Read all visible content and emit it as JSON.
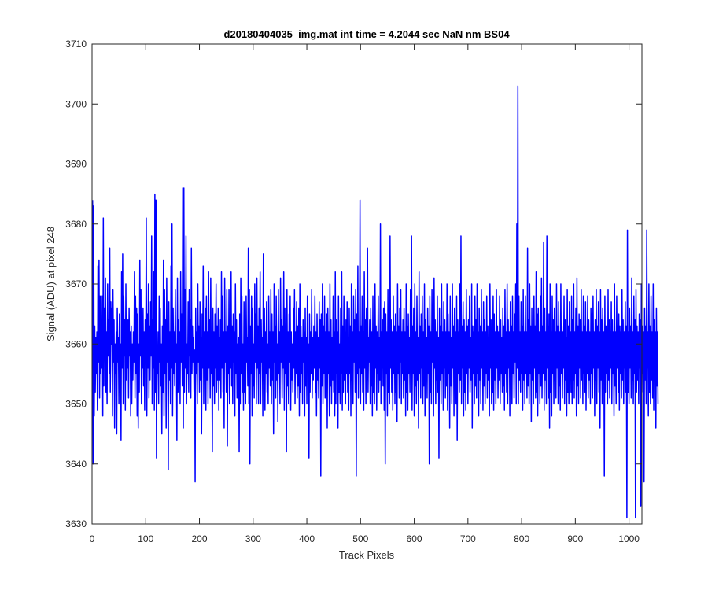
{
  "chart_data": {
    "type": "line",
    "title": "d20180404035_img.mat int time = 4.2044 sec  NaN nm BS04",
    "xlabel": "Track Pixels",
    "ylabel": "Signal (ADU) at pixel 248",
    "xlim": [
      0,
      1024
    ],
    "ylim": [
      3630,
      3710
    ],
    "xticks": [
      0,
      100,
      200,
      300,
      400,
      500,
      600,
      700,
      800,
      900,
      1000
    ],
    "yticks": [
      3630,
      3640,
      3650,
      3660,
      3670,
      3680,
      3690,
      3700,
      3710
    ],
    "grid": false,
    "legend": "none",
    "series": [
      {
        "color": "#0000ff",
        "x_start": 1,
        "x_step": 1,
        "values": [
          3684,
          3640,
          3683,
          3648,
          3663,
          3652,
          3661,
          3655,
          3662,
          3649,
          3673,
          3657,
          3674,
          3651,
          3668,
          3655,
          3660,
          3656,
          3668,
          3648,
          3681,
          3653,
          3666,
          3659,
          3671,
          3652,
          3662,
          3650,
          3670,
          3658,
          3664,
          3655,
          3676,
          3652,
          3667,
          3660,
          3666,
          3648,
          3669,
          3657,
          3664,
          3646,
          3660,
          3655,
          3662,
          3645,
          3666,
          3657,
          3661,
          3650,
          3665,
          3652,
          3660,
          3644,
          3672,
          3656,
          3675,
          3650,
          3668,
          3658,
          3664,
          3649,
          3670,
          3654,
          3662,
          3656,
          3664,
          3651,
          3666,
          3658,
          3662,
          3648,
          3663,
          3650,
          3660,
          3654,
          3662,
          3657,
          3672,
          3651,
          3668,
          3655,
          3666,
          3648,
          3665,
          3646,
          3660,
          3652,
          3674,
          3658,
          3669,
          3650,
          3663,
          3656,
          3666,
          3653,
          3662,
          3649,
          3664,
          3657,
          3681,
          3648,
          3665,
          3656,
          3670,
          3651,
          3663,
          3654,
          3667,
          3658,
          3678,
          3650,
          3664,
          3656,
          3672,
          3649,
          3685,
          3652,
          3684,
          3641,
          3658,
          3655,
          3662,
          3650,
          3668,
          3657,
          3666,
          3653,
          3660,
          3645,
          3663,
          3652,
          3674,
          3648,
          3669,
          3655,
          3664,
          3646,
          3671,
          3657,
          3663,
          3639,
          3667,
          3654,
          3662,
          3650,
          3673,
          3656,
          3680,
          3648,
          3666,
          3655,
          3662,
          3653,
          3669,
          3657,
          3660,
          3644,
          3671,
          3652,
          3664,
          3655,
          3662,
          3650,
          3672,
          3657,
          3665,
          3653,
          3686,
          3646,
          3686,
          3652,
          3669,
          3656,
          3678,
          3650,
          3660,
          3655,
          3667,
          3652,
          3669,
          3658,
          3664,
          3651,
          3676,
          3655,
          3663,
          3657,
          3661,
          3652,
          3659,
          3637,
          3666,
          3655,
          3662,
          3650,
          3670,
          3657,
          3663,
          3652,
          3667,
          3654,
          3661,
          3645,
          3665,
          3656,
          3673,
          3650,
          3662,
          3655,
          3666,
          3649,
          3668,
          3654,
          3662,
          3650,
          3672,
          3656,
          3664,
          3651,
          3671,
          3655,
          3660,
          3642,
          3666,
          3653,
          3662,
          3650,
          3665,
          3656,
          3670,
          3652,
          3663,
          3654,
          3666,
          3649,
          3661,
          3654,
          3664,
          3651,
          3672,
          3656,
          3668,
          3652,
          3662,
          3646,
          3671,
          3657,
          3662,
          3652,
          3669,
          3643,
          3663,
          3655,
          3669,
          3650,
          3662,
          3656,
          3672,
          3653,
          3663,
          3650,
          3665,
          3657,
          3662,
          3648,
          3670,
          3655,
          3664,
          3651,
          3660,
          3654,
          3661,
          3642,
          3665,
          3650,
          3671,
          3655,
          3668,
          3652,
          3660,
          3649,
          3667,
          3652,
          3662,
          3650,
          3668,
          3657,
          3661,
          3653,
          3676,
          3650,
          3669,
          3640,
          3663,
          3655,
          3668,
          3648,
          3666,
          3653,
          3660,
          3651,
          3670,
          3657,
          3665,
          3650,
          3671,
          3656,
          3663,
          3650,
          3666,
          3655,
          3672,
          3650,
          3664,
          3657,
          3661,
          3648,
          3675,
          3654,
          3666,
          3649,
          3662,
          3655,
          3667,
          3652,
          3660,
          3650,
          3668,
          3656,
          3662,
          3653,
          3669,
          3650,
          3665,
          3654,
          3662,
          3645,
          3670,
          3657,
          3663,
          3651,
          3668,
          3654,
          3660,
          3647,
          3669,
          3655,
          3662,
          3650,
          3671,
          3657,
          3664,
          3651,
          3663,
          3656,
          3672,
          3649,
          3666,
          3655,
          3661,
          3642,
          3669,
          3653,
          3662,
          3650,
          3665,
          3657,
          3668,
          3649,
          3662,
          3654,
          3660,
          3652,
          3666,
          3656,
          3669,
          3650,
          3662,
          3655,
          3667,
          3651,
          3663,
          3653,
          3666,
          3648,
          3670,
          3652,
          3663,
          3655,
          3661,
          3650,
          3664,
          3657,
          3662,
          3648,
          3666,
          3653,
          3661,
          3650,
          3668,
          3656,
          3660,
          3641,
          3665,
          3652,
          3662,
          3655,
          3669,
          3651,
          3661,
          3654,
          3663,
          3656,
          3668,
          3652,
          3662,
          3648,
          3665,
          3654,
          3661,
          3651,
          3667,
          3656,
          3664,
          3638,
          3665,
          3653,
          3670,
          3650,
          3663,
          3655,
          3668,
          3651,
          3662,
          3657,
          3665,
          3646,
          3666,
          3655,
          3662,
          3648,
          3670,
          3653,
          3664,
          3650,
          3661,
          3654,
          3668,
          3652,
          3662,
          3648,
          3672,
          3650,
          3664,
          3655,
          3662,
          3646,
          3668,
          3652,
          3660,
          3650,
          3666,
          3655,
          3672,
          3649,
          3663,
          3652,
          3668,
          3654,
          3662,
          3650,
          3664,
          3655,
          3667,
          3652,
          3661,
          3649,
          3666,
          3655,
          3663,
          3648,
          3670,
          3654,
          3662,
          3650,
          3668,
          3657,
          3664,
          3652,
          3669,
          3638,
          3665,
          3655,
          3673,
          3651,
          3662,
          3656,
          3684,
          3650,
          3663,
          3655,
          3668,
          3652,
          3662,
          3649,
          3672,
          3656,
          3664,
          3650,
          3666,
          3654,
          3676,
          3652,
          3661,
          3657,
          3664,
          3650,
          3666,
          3653,
          3662,
          3648,
          3668,
          3652,
          3661,
          3650,
          3670,
          3656,
          3663,
          3649,
          3662,
          3655,
          3668,
          3652,
          3661,
          3654,
          3680,
          3650,
          3662,
          3656,
          3664,
          3653,
          3666,
          3649,
          3667,
          3640,
          3665,
          3655,
          3662,
          3648,
          3669,
          3652,
          3663,
          3650,
          3678,
          3656,
          3664,
          3652,
          3662,
          3649,
          3668,
          3655,
          3663,
          3650,
          3665,
          3652,
          3662,
          3647,
          3670,
          3655,
          3663,
          3651,
          3666,
          3657,
          3669,
          3650,
          3662,
          3655,
          3664,
          3651,
          3666,
          3654,
          3662,
          3648,
          3670,
          3652,
          3663,
          3649,
          3665,
          3655,
          3661,
          3652,
          3669,
          3656,
          3678,
          3649,
          3663,
          3655,
          3666,
          3648,
          3670,
          3653,
          3662,
          3650,
          3668,
          3654,
          3661,
          3646,
          3672,
          3655,
          3663,
          3651,
          3665,
          3656,
          3668,
          3650,
          3662,
          3653,
          3670,
          3648,
          3664,
          3655,
          3661,
          3651,
          3666,
          3655,
          3663,
          3640,
          3668,
          3652,
          3662,
          3650,
          3669,
          3657,
          3662,
          3648,
          3671,
          3656,
          3664,
          3650,
          3662,
          3654,
          3668,
          3652,
          3661,
          3641,
          3666,
          3654,
          3663,
          3650,
          3670,
          3655,
          3662,
          3649,
          3667,
          3656,
          3664,
          3651,
          3662,
          3653,
          3670,
          3649,
          3665,
          3655,
          3662,
          3646,
          3668,
          3653,
          3661,
          3650,
          3670,
          3656,
          3663,
          3648,
          3666,
          3655,
          3662,
          3650,
          3668,
          3644,
          3664,
          3655,
          3662,
          3652,
          3670,
          3654,
          3678,
          3650,
          3663,
          3656,
          3667,
          3648,
          3664,
          3652,
          3662,
          3649,
          3669,
          3655,
          3663,
          3650,
          3664,
          3656,
          3668,
          3652,
          3661,
          3654,
          3670,
          3646,
          3663,
          3655,
          3662,
          3650,
          3668,
          3653,
          3664,
          3651,
          3670,
          3655,
          3662,
          3648,
          3666,
          3654,
          3663,
          3650,
          3669,
          3656,
          3662,
          3649,
          3667,
          3653,
          3664,
          3650,
          3662,
          3655,
          3668,
          3651,
          3663,
          3654,
          3661,
          3648,
          3670,
          3656,
          3664,
          3650,
          3662,
          3652,
          3668,
          3649,
          3665,
          3654,
          3662,
          3650,
          3669,
          3656,
          3663,
          3651,
          3662,
          3654,
          3668,
          3650,
          3664,
          3655,
          3661,
          3652,
          3666,
          3653,
          3663,
          3649,
          3669,
          3655,
          3662,
          3652,
          3670,
          3650,
          3664,
          3656,
          3662,
          3648,
          3667,
          3654,
          3663,
          3650,
          3668,
          3655,
          3662,
          3651,
          3665,
          3657,
          3670,
          3650,
          3680,
          3656,
          3703,
          3650,
          3668,
          3654,
          3662,
          3652,
          3667,
          3655,
          3663,
          3649,
          3669,
          3654,
          3662,
          3650,
          3668,
          3655,
          3662,
          3651,
          3676,
          3653,
          3664,
          3650,
          3670,
          3655,
          3663,
          3647,
          3666,
          3654,
          3662,
          3650,
          3668,
          3656,
          3663,
          3651,
          3672,
          3652,
          3665,
          3648,
          3666,
          3655,
          3662,
          3650,
          3668,
          3653,
          3671,
          3651,
          3663,
          3655,
          3677,
          3649,
          3666,
          3654,
          3662,
          3650,
          3678,
          3656,
          3663,
          3651,
          3665,
          3646,
          3670,
          3652,
          3662,
          3648,
          3668,
          3655,
          3664,
          3650,
          3666,
          3654,
          3662,
          3651,
          3670,
          3656,
          3663,
          3650,
          3667,
          3653,
          3662,
          3649,
          3670,
          3655,
          3663,
          3651,
          3662,
          3656,
          3668,
          3650,
          3664,
          3654,
          3661,
          3648,
          3669,
          3652,
          3663,
          3650,
          3667,
          3656,
          3662,
          3652,
          3668,
          3650,
          3664,
          3654,
          3670,
          3651,
          3662,
          3655,
          3666,
          3648,
          3671,
          3653,
          3663,
          3650,
          3665,
          3656,
          3664,
          3651,
          3669,
          3654,
          3662,
          3650,
          3668,
          3655,
          3663,
          3652,
          3667,
          3649,
          3662,
          3655,
          3668,
          3651,
          3664,
          3654,
          3662,
          3650,
          3666,
          3655,
          3665,
          3651,
          3668,
          3656,
          3662,
          3648,
          3664,
          3654,
          3669,
          3650,
          3663,
          3656,
          3667,
          3652,
          3662,
          3646,
          3669,
          3654,
          3664,
          3650,
          3666,
          3657,
          3662,
          3638,
          3668,
          3652,
          3663,
          3655,
          3662,
          3650,
          3669,
          3654,
          3664,
          3651,
          3662,
          3656,
          3667,
          3650,
          3664,
          3655,
          3662,
          3648,
          3670,
          3653,
          3662,
          3650,
          3668,
          3656,
          3663,
          3652,
          3665,
          3649,
          3663,
          3655,
          3662,
          3651,
          3669,
          3654,
          3664,
          3650,
          3662,
          3656,
          3667,
          3652,
          3663,
          3631,
          3679,
          3652,
          3662,
          3650,
          3666,
          3656,
          3663,
          3651,
          3671,
          3654,
          3662,
          3650,
          3668,
          3655,
          3664,
          3631,
          3669,
          3652,
          3663,
          3654,
          3662,
          3650,
          3665,
          3656,
          3664,
          3633,
          3670,
          3652,
          3663,
          3655,
          3662,
          3637,
          3666,
          3654,
          3663,
          3650,
          3679,
          3656,
          3662,
          3648,
          3670,
          3652,
          3663,
          3650,
          3668,
          3654,
          3662,
          3651,
          3670,
          3649,
          3664,
          3655,
          3662,
          3646,
          3666,
          3653,
          3662,
          3650
        ]
      }
    ]
  }
}
